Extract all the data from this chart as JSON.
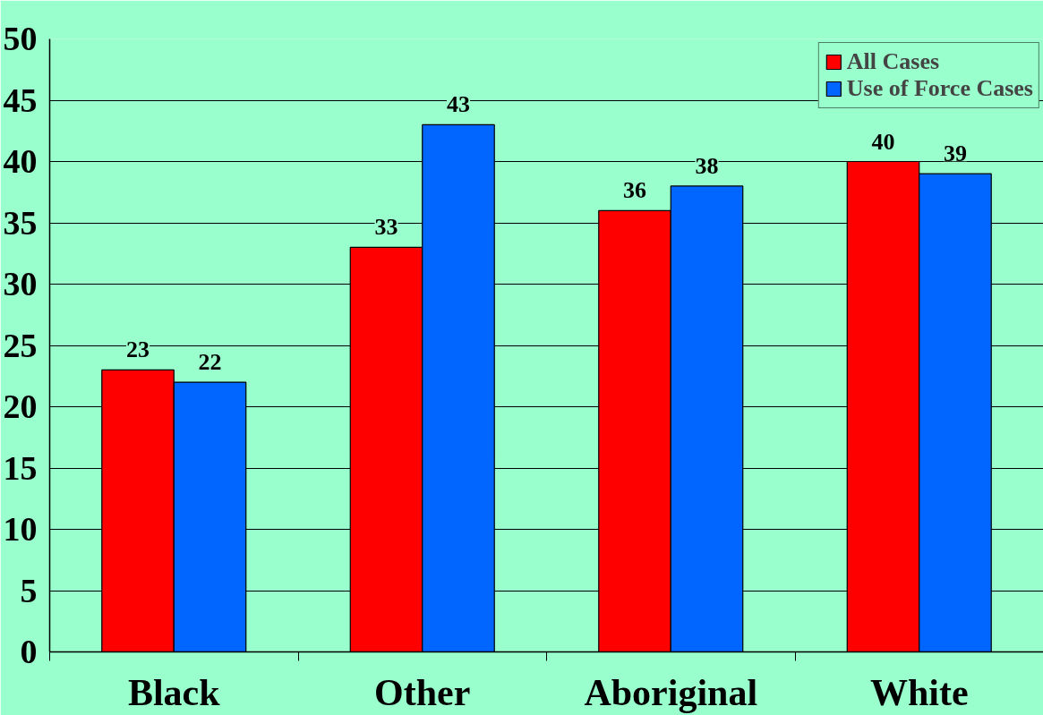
{
  "chart_data": {
    "type": "bar",
    "categories": [
      "Black",
      "Other",
      "Aboriginal",
      "White"
    ],
    "series": [
      {
        "name": "All Cases",
        "color": "#ff0000",
        "values": [
          23,
          33,
          36,
          40
        ]
      },
      {
        "name": "Use of Force Cases",
        "color": "#0066ff",
        "values": [
          22,
          43,
          38,
          39
        ]
      }
    ],
    "ylim": [
      0,
      50
    ],
    "yticks": [
      0,
      5,
      10,
      15,
      20,
      25,
      30,
      35,
      40,
      45,
      50
    ],
    "grid": "y",
    "legend": "top right",
    "data_labels": true
  }
}
